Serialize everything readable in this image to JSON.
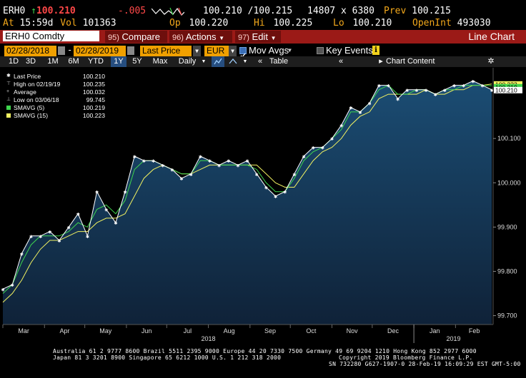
{
  "quote_row1": {
    "ticker": "ERH0",
    "arrow": "↑",
    "last": "100.210",
    "change": "-.005",
    "spark": "",
    "bid_ask": "100.210 /100.215",
    "size": "14807 x 6380",
    "prev_label": "Prev",
    "prev": "100.215"
  },
  "quote_row2": {
    "at_label": "At",
    "time": "15:59d",
    "vol_label": "Vol",
    "vol": "101363",
    "op_label": "Op",
    "op": "100.220",
    "hi_label": "Hi",
    "hi": "100.225",
    "lo_label": "Lo",
    "lo": "100.210",
    "oi_label": "OpenInt",
    "oi": "493030"
  },
  "menubar": {
    "security": "ERH0 Comdty",
    "compare_num": "95)",
    "compare": "Compare",
    "actions_num": "96)",
    "actions": "Actions",
    "edit_num": "97)",
    "edit": "Edit",
    "chart_type": "Line Chart"
  },
  "controls": {
    "start_date": "02/28/2018",
    "end_date": "02/28/2019",
    "field": "Last Price",
    "currency": "EUR",
    "mov_avgs": "Mov Avgs",
    "key_events": "Key Events"
  },
  "periods": [
    {
      "label": "1D"
    },
    {
      "label": "3D"
    },
    {
      "label": "1M"
    },
    {
      "label": "6M"
    },
    {
      "label": "YTD"
    },
    {
      "label": "1Y"
    },
    {
      "label": "5Y"
    },
    {
      "label": "Max"
    },
    {
      "label": "Daily"
    }
  ],
  "period_tools": {
    "table": "Table",
    "chart_content": "Chart Content"
  },
  "legend": [
    {
      "label": "Last Price",
      "value": "100.210",
      "marker": "star",
      "color": "#ffffff"
    },
    {
      "label": "High on 02/19/19",
      "value": "100.235",
      "marker": "high",
      "color": "#cccccc"
    },
    {
      "label": "Average",
      "value": "100.032",
      "marker": "avg",
      "color": "#cccccc"
    },
    {
      "label": "Low on 03/06/18",
      "value": "99.745",
      "marker": "low",
      "color": "#cccccc"
    },
    {
      "label": "SMAVG (5)",
      "value": "100.219",
      "marker": "box",
      "color": "#3fd64e"
    },
    {
      "label": "SMAVG (15)",
      "value": "100.223",
      "marker": "box",
      "color": "#f2f261"
    }
  ],
  "chart_data": {
    "type": "area",
    "ylim": [
      99.68,
      100.25
    ],
    "y_ticks": [
      "100.100",
      "100.000",
      "99.900",
      "99.800",
      "99.700"
    ],
    "y_tick_values": [
      100.1,
      100.0,
      99.9,
      99.8,
      99.7
    ],
    "last_labels": [
      "100.223",
      "100.219",
      "100.210"
    ],
    "months": [
      "Mar",
      "Apr",
      "May",
      "Jun",
      "Jul",
      "Aug",
      "Sep",
      "Oct",
      "Nov",
      "Dec",
      "Jan",
      "Feb"
    ],
    "years": [
      "2018",
      "2019"
    ],
    "x": [
      "2018-03-01",
      "2018-03-08",
      "2018-03-15",
      "2018-03-22",
      "2018-03-29",
      "2018-04-05",
      "2018-04-12",
      "2018-04-19",
      "2018-04-26",
      "2018-05-03",
      "2018-05-10",
      "2018-05-17",
      "2018-05-24",
      "2018-05-31",
      "2018-06-07",
      "2018-06-14",
      "2018-06-21",
      "2018-06-28",
      "2018-07-05",
      "2018-07-12",
      "2018-07-19",
      "2018-07-26",
      "2018-08-02",
      "2018-08-09",
      "2018-08-16",
      "2018-08-23",
      "2018-08-30",
      "2018-09-06",
      "2018-09-13",
      "2018-09-20",
      "2018-09-27",
      "2018-10-04",
      "2018-10-11",
      "2018-10-18",
      "2018-10-25",
      "2018-11-01",
      "2018-11-08",
      "2018-11-15",
      "2018-11-22",
      "2018-11-29",
      "2018-12-06",
      "2018-12-13",
      "2018-12-20",
      "2018-12-27",
      "2019-01-03",
      "2019-01-10",
      "2019-01-17",
      "2019-01-24",
      "2019-01-31",
      "2019-02-07",
      "2019-02-14",
      "2019-02-21",
      "2019-02-28"
    ],
    "series": [
      {
        "name": "Last Price",
        "values": [
          99.76,
          99.77,
          99.84,
          99.88,
          99.88,
          99.89,
          99.87,
          99.9,
          99.93,
          99.88,
          99.98,
          99.94,
          99.91,
          99.98,
          100.06,
          100.05,
          100.05,
          100.04,
          100.03,
          100.01,
          100.02,
          100.06,
          100.05,
          100.04,
          100.05,
          100.04,
          100.05,
          100.02,
          99.99,
          99.97,
          99.98,
          100.02,
          100.06,
          100.08,
          100.08,
          100.1,
          100.13,
          100.17,
          100.16,
          100.18,
          100.22,
          100.22,
          100.19,
          100.21,
          100.21,
          100.21,
          100.2,
          100.21,
          100.22,
          100.22,
          100.23,
          100.22,
          100.21
        ]
      },
      {
        "name": "SMAVG (5)",
        "values": [
          99.75,
          99.77,
          99.82,
          99.86,
          99.88,
          99.88,
          99.88,
          99.89,
          99.91,
          99.9,
          99.94,
          99.95,
          99.93,
          99.96,
          100.03,
          100.05,
          100.05,
          100.04,
          100.03,
          100.02,
          100.02,
          100.05,
          100.05,
          100.04,
          100.04,
          100.04,
          100.04,
          100.03,
          100.0,
          99.98,
          99.98,
          100.01,
          100.05,
          100.07,
          100.08,
          100.1,
          100.12,
          100.16,
          100.16,
          100.18,
          100.21,
          100.22,
          100.2,
          100.2,
          100.21,
          100.21,
          100.2,
          100.21,
          100.21,
          100.22,
          100.22,
          100.22,
          100.219
        ]
      },
      {
        "name": "SMAVG (15)",
        "values": [
          99.73,
          99.75,
          99.78,
          99.82,
          99.85,
          99.87,
          99.87,
          99.88,
          99.89,
          99.89,
          99.91,
          99.92,
          99.92,
          99.93,
          99.97,
          100.01,
          100.03,
          100.04,
          100.03,
          100.02,
          100.02,
          100.03,
          100.04,
          100.04,
          100.04,
          100.04,
          100.04,
          100.04,
          100.02,
          100.0,
          99.99,
          99.99,
          100.02,
          100.05,
          100.07,
          100.08,
          100.1,
          100.13,
          100.15,
          100.16,
          100.19,
          100.2,
          100.2,
          100.2,
          100.2,
          100.21,
          100.2,
          100.2,
          100.21,
          100.21,
          100.22,
          100.22,
          100.223
        ]
      }
    ]
  },
  "footer": {
    "line1": "Australia 61 2 9777 8600 Brazil 5511 2395 9000 Europe 44 20 7330 7500 Germany 49 69 9204 1210 Hong Kong 852 2977 6000",
    "line2a": "Japan 81 3 3201 8900       Singapore 65 6212 1000       U.S. 1 212 318 2000",
    "line2b": "Copyright 2019 Bloomberg Finance L.P.",
    "line3": "SN 732280 G627-1907-0 28-Feb-19 16:09:29 EST  GMT-5:00"
  },
  "colors": {
    "amber": "#f3a81b",
    "menu_red": "#9b1a17",
    "area_top": "#1b4d74",
    "area_bottom": "#0f2238",
    "sma5": "#3fd64e",
    "sma15": "#f2f261"
  }
}
